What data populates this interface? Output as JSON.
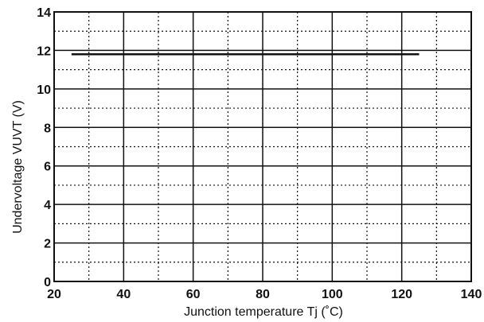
{
  "chart_data": {
    "type": "line",
    "title": "",
    "xlabel": "Junction temperature   Tj (˚C)",
    "ylabel": "Undervoltage   VUVT (V)",
    "xlim": [
      20,
      140
    ],
    "ylim": [
      0,
      14
    ],
    "x_ticks": [
      "20",
      "40",
      "60",
      "80",
      "100",
      "120",
      "140"
    ],
    "y_ticks": [
      "0",
      "2",
      "4",
      "6",
      "8",
      "10",
      "12",
      "14"
    ],
    "grid": "solid major lines with dotted minor lines",
    "series": [
      {
        "x": [
          25,
          125
        ],
        "y": [
          11.8,
          11.8
        ]
      }
    ],
    "colors": {
      "line": "#111111",
      "grid": "#111111",
      "background": "#ffffff"
    }
  }
}
